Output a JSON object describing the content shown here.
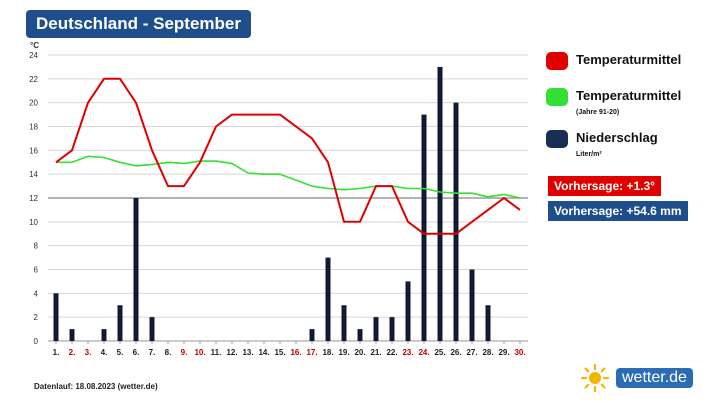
{
  "title": "Deutschland - September",
  "y_unit": "°C",
  "legend": [
    {
      "label": "Temperaturmittel",
      "sub": "",
      "color": "#e00000"
    },
    {
      "label": "Temperaturmittel",
      "sub": "(Jahre 91-20)",
      "color": "#33e033"
    },
    {
      "label": "Niederschlag",
      "sub": "Liter/m²",
      "color": "#1a2e55"
    }
  ],
  "forecast": {
    "temp_label": "Vorhersage: +1.3°",
    "temp_color": "#e00000",
    "precip_label": "Vorhersage: +54.6 mm",
    "precip_color": "#1f4e8c"
  },
  "footer": "Datenlauf: 18.08.2023 (wetter.de)",
  "logo": {
    "text": "wetter.de"
  },
  "chart_data": {
    "type": "bar",
    "categories": [
      "1.",
      "2.",
      "3.",
      "4.",
      "5.",
      "6.",
      "7.",
      "8.",
      "9.",
      "10.",
      "11.",
      "12.",
      "13.",
      "14.",
      "15.",
      "16.",
      "17.",
      "18.",
      "19.",
      "20.",
      "21.",
      "22.",
      "23.",
      "24.",
      "25.",
      "26.",
      "27.",
      "28.",
      "29.",
      "30."
    ],
    "weekend_categories": [
      "2.",
      "3.",
      "9.",
      "10.",
      "16.",
      "17.",
      "23.",
      "24.",
      "30."
    ],
    "ylim": [
      0,
      24
    ],
    "yticks": [
      0,
      2,
      4,
      6,
      8,
      10,
      12,
      14,
      16,
      18,
      20,
      22,
      24
    ],
    "series": [
      {
        "name": "Niederschlag",
        "type": "bar",
        "color": "#111a33",
        "values": [
          4,
          1,
          0,
          1,
          3,
          12,
          2,
          0,
          0,
          0,
          0,
          0,
          0,
          0,
          0,
          0,
          1,
          7,
          3,
          1,
          2,
          2,
          5,
          19,
          23,
          20,
          6,
          3,
          0,
          0
        ]
      },
      {
        "name": "Temperaturmittel",
        "type": "line",
        "color": "#e00000",
        "values": [
          15,
          16,
          20,
          22,
          22,
          20,
          16,
          13,
          13,
          15,
          18,
          19,
          19,
          19,
          19,
          18,
          17,
          15,
          10,
          10,
          13,
          13,
          10,
          9,
          9,
          9,
          10,
          11,
          12,
          11
        ]
      },
      {
        "name": "Temperaturmittel (Jahre 91-20)",
        "type": "line",
        "color": "#33e033",
        "values": [
          15,
          15,
          15.5,
          15.4,
          15,
          14.7,
          14.8,
          15,
          14.9,
          15.1,
          15.1,
          14.9,
          14.1,
          14,
          14,
          13.5,
          13,
          12.8,
          12.7,
          12.8,
          13,
          13,
          12.8,
          12.8,
          12.5,
          12.4,
          12.4,
          12.1,
          12.3,
          12
        ]
      }
    ]
  }
}
